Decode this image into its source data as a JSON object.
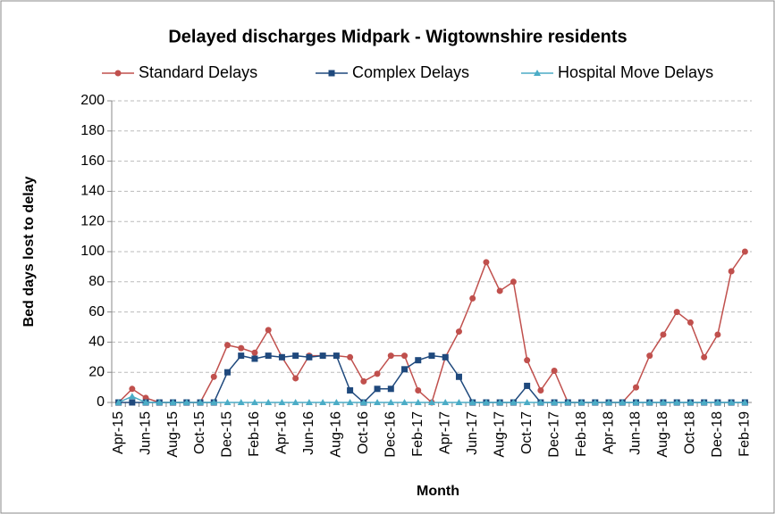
{
  "chart_data": {
    "type": "line",
    "title": "Delayed discharges Midpark - Wigtownshire residents",
    "x_label": "Month",
    "y_label": "Bed days lost to delay",
    "categories": [
      "Apr-15",
      null,
      "Jun-15",
      null,
      "Aug-15",
      null,
      "Oct-15",
      null,
      "Dec-15",
      null,
      "Feb-16",
      null,
      "Apr-16",
      null,
      "Jun-16",
      null,
      "Aug-16",
      null,
      "Oct-16",
      null,
      "Dec-16",
      null,
      "Feb-17",
      null,
      "Apr-17",
      null,
      "Jun-17",
      null,
      "Aug-17",
      null,
      "Oct-17",
      null,
      "Dec-17",
      null,
      "Feb-18",
      null,
      "Apr-18",
      null,
      "Jun-18",
      null,
      "Aug-18",
      null,
      "Oct-18",
      null,
      "Dec-18",
      null,
      "Feb-19"
    ],
    "series": [
      {
        "name": "Standard Delays",
        "color": "#c0504d",
        "marker": "circle",
        "values": [
          0,
          9,
          3,
          0,
          0,
          0,
          0,
          17,
          38,
          36,
          33,
          48,
          30,
          16,
          31,
          31,
          31,
          30,
          14,
          19,
          31,
          31,
          8,
          0,
          30,
          47,
          69,
          93,
          74,
          80,
          28,
          8,
          21,
          0,
          0,
          0,
          0,
          0,
          10,
          31,
          45,
          60,
          53,
          30,
          45,
          87,
          100
        ]
      },
      {
        "name": "Complex Delays",
        "color": "#1f497d",
        "marker": "square",
        "values": [
          0,
          0,
          0,
          0,
          0,
          0,
          0,
          0,
          20,
          31,
          29,
          31,
          30,
          31,
          30,
          31,
          31,
          8,
          0,
          9,
          9,
          22,
          28,
          31,
          30,
          17,
          0,
          0,
          0,
          0,
          11,
          0,
          0,
          0,
          0,
          0,
          0,
          0,
          0,
          0,
          0,
          0,
          0,
          0,
          0,
          0,
          0
        ]
      },
      {
        "name": "Hospital Move Delays",
        "color": "#4bacc6",
        "marker": "triangle",
        "values": [
          0,
          4,
          0,
          0,
          0,
          0,
          0,
          0,
          0,
          0,
          0,
          0,
          0,
          0,
          0,
          0,
          0,
          0,
          0,
          0,
          0,
          0,
          0,
          0,
          0,
          0,
          0,
          0,
          0,
          0,
          0,
          0,
          0,
          0,
          0,
          0,
          0,
          0,
          0,
          0,
          0,
          0,
          0,
          0,
          0,
          0,
          0
        ]
      }
    ],
    "ylim": [
      0,
      200
    ],
    "yticks": [
      0,
      20,
      40,
      60,
      80,
      100,
      120,
      140,
      160,
      180,
      200
    ],
    "grid": true,
    "legend": "top"
  }
}
